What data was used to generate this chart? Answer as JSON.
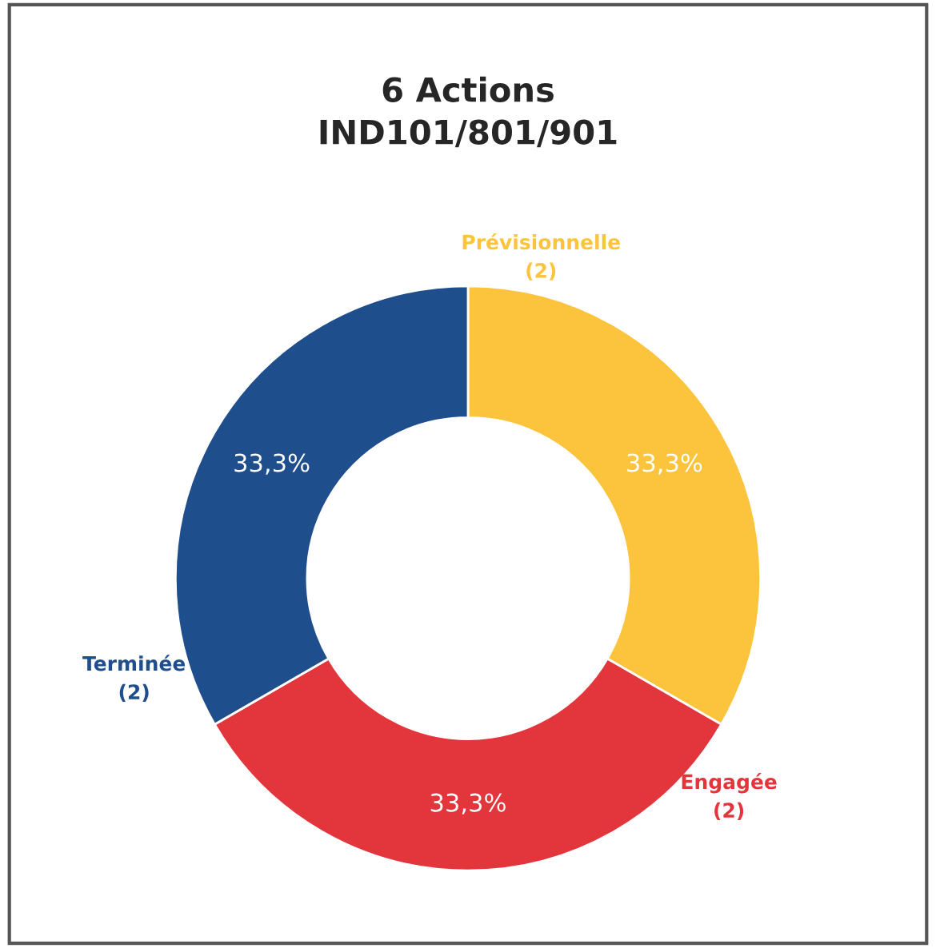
{
  "chart_data": {
    "type": "donut",
    "title": "6 Actions\nIND101/801/901",
    "categories": [
      "Prévisionnelle\n(2)",
      "Engagée\n(2)",
      "Terminée\n(2)"
    ],
    "values": [
      33.3,
      33.3,
      33.3
    ],
    "colors": [
      "#fcc43c",
      "#e3353c",
      "#1f4e8c"
    ],
    "value_labels": [
      "33,3%",
      "33,3%",
      "33,3%"
    ],
    "legend": false
  }
}
